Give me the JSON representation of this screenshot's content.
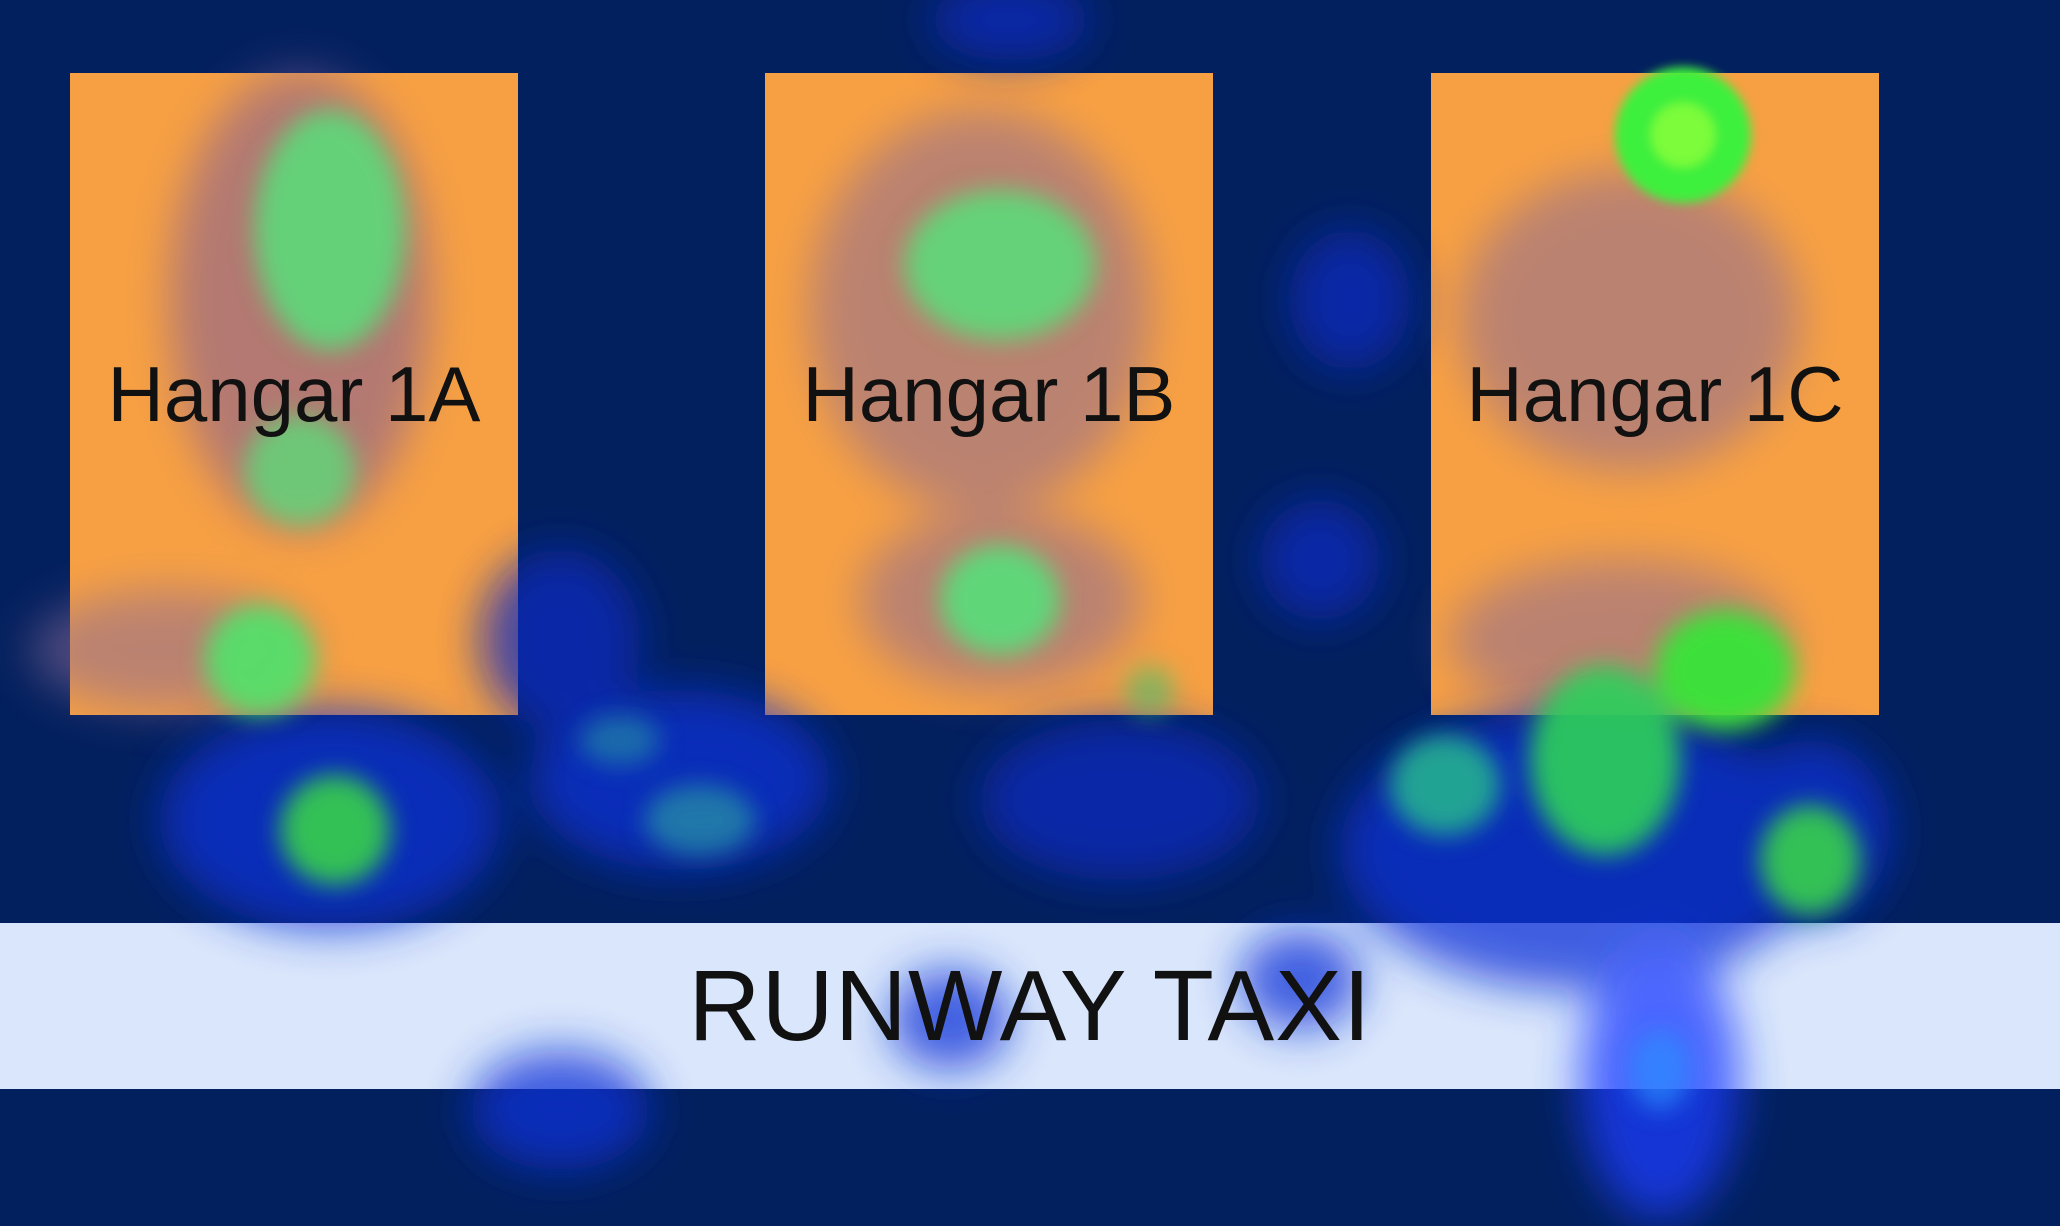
{
  "hangars": [
    {
      "label": "Hangar 1A"
    },
    {
      "label": "Hangar 1B"
    },
    {
      "label": "Hangar 1C"
    }
  ],
  "runway": {
    "label": "RUNWAY TAXI"
  },
  "colors": {
    "background": "#03205e",
    "hangar": "#f7a043",
    "runway": "#d9e6fb",
    "heat_low": "#1a3cff",
    "heat_high": "#3cff3c"
  }
}
